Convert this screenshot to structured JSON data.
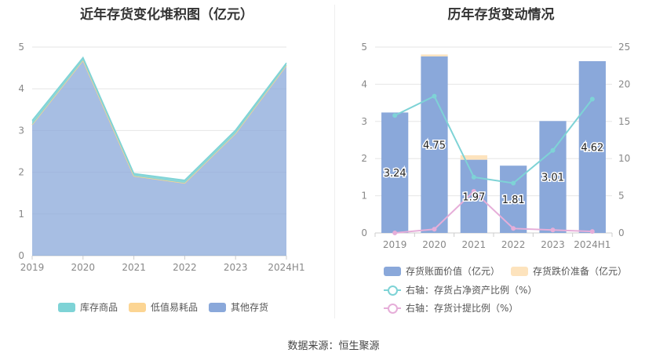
{
  "source_text": "数据来源：恒生聚源",
  "colors": {
    "inventory_goods": "#7ed3d6",
    "low_value_consumables": "#fcd593",
    "other_inventory": "#8aa8da",
    "book_value_bar": "#8aa8da",
    "impairment_bar": "#fde3bd",
    "ratio_line": "#7ed3d6",
    "provision_line": "#e6aed9",
    "grid": "#e6e6e6",
    "axis_text": "#888888"
  },
  "chart_data": [
    {
      "type": "area",
      "stacked": true,
      "title": "近年存货变化堆积图（亿元）",
      "categories": [
        "2019",
        "2020",
        "2021",
        "2022",
        "2023",
        "2024H1"
      ],
      "ylim": [
        0,
        5
      ],
      "yticks": [
        0,
        1,
        2,
        3,
        4,
        5
      ],
      "grid": true,
      "legend_position": "bottom",
      "series": [
        {
          "name": "其他存货",
          "values": [
            3.14,
            4.68,
            1.91,
            1.74,
            2.93,
            4.56
          ]
        },
        {
          "name": "低值易耗品",
          "values": [
            0.0,
            0.0,
            0.0,
            0.0,
            0.0,
            0.0
          ]
        },
        {
          "name": "库存商品",
          "values": [
            0.1,
            0.07,
            0.06,
            0.07,
            0.08,
            0.06
          ]
        }
      ],
      "legend": [
        "库存商品",
        "低值易耗品",
        "其他存货"
      ]
    },
    {
      "type": "bar",
      "title": "历年存货变动情况",
      "categories": [
        "2019",
        "2020",
        "2021",
        "2022",
        "2023",
        "2024H1"
      ],
      "ylim": [
        0,
        5
      ],
      "yticks": [
        0,
        1,
        2,
        3,
        4,
        5
      ],
      "y2lim": [
        0,
        25
      ],
      "y2ticks": [
        0,
        5,
        10,
        15,
        20,
        25
      ],
      "grid": true,
      "legend_position": "bottom",
      "series": [
        {
          "name": "存货账面价值（亿元）",
          "axis": "left",
          "kind": "bar",
          "values": [
            3.24,
            4.75,
            1.97,
            1.81,
            3.01,
            4.62
          ],
          "labels": [
            "3.24",
            "4.75",
            "1.97",
            "1.81",
            "3.01",
            "4.62"
          ]
        },
        {
          "name": "存货跌价准备（亿元）",
          "axis": "left",
          "kind": "bar",
          "values": [
            0.0,
            0.05,
            0.12,
            0.0,
            0.0,
            0.0
          ]
        },
        {
          "name": "右轴：存货占净资产比例（%）",
          "axis": "right",
          "kind": "line",
          "values": [
            15.8,
            18.4,
            7.5,
            6.7,
            11.1,
            18.0
          ]
        },
        {
          "name": "右轴：存货计提比例（%）",
          "axis": "right",
          "kind": "line",
          "values": [
            0.0,
            0.5,
            5.6,
            0.6,
            0.4,
            0.2
          ]
        }
      ]
    }
  ]
}
